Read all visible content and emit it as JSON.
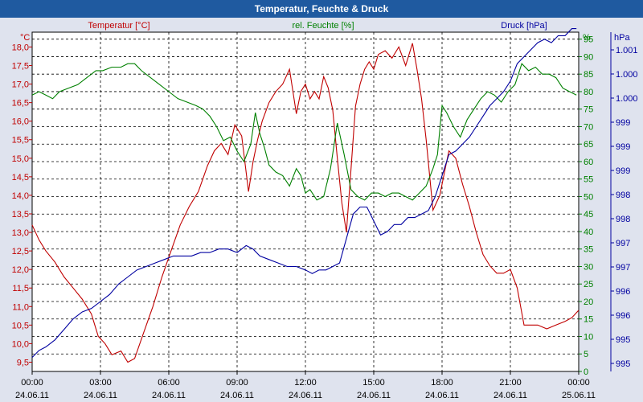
{
  "window": {
    "title": "Temperatur, Feuchte & Druck"
  },
  "chart_data": {
    "type": "line",
    "title": "Temperatur, Feuchte & Druck",
    "grid": true,
    "x_ticks": [
      {
        "time": "00:00",
        "date": "24.06.11"
      },
      {
        "time": "03:00",
        "date": "24.06.11"
      },
      {
        "time": "06:00",
        "date": "24.06.11"
      },
      {
        "time": "09:00",
        "date": "24.06.11"
      },
      {
        "time": "12:00",
        "date": "24.06.11"
      },
      {
        "time": "15:00",
        "date": "24.06.11"
      },
      {
        "time": "18:00",
        "date": "24.06.11"
      },
      {
        "time": "21:00",
        "date": "24.06.11"
      },
      {
        "time": "00:00",
        "date": "25.06.11"
      }
    ],
    "xlim_hours": [
      0,
      24
    ],
    "axes": {
      "temperature": {
        "unit": "°C",
        "label": "Temperatur [°C]",
        "color": "#c00000",
        "ylim": [
          9.25,
          18.4
        ],
        "ticks": [
          "18,0",
          "17,5",
          "17,0",
          "16,5",
          "16,0",
          "15,5",
          "15,0",
          "14,5",
          "14,0",
          "13,5",
          "13,0",
          "12,5",
          "12,0",
          "11,5",
          "11,0",
          "10,5",
          "10,0",
          "9,5"
        ]
      },
      "humidity": {
        "unit": "%",
        "label": "rel. Feuchte [%]",
        "color": "#008000",
        "ylim": [
          0,
          97
        ],
        "ticks": [
          "95",
          "90",
          "85",
          "80",
          "75",
          "70",
          "65",
          "60",
          "55",
          "50",
          "45",
          "40",
          "35",
          "30",
          "25",
          "20",
          "15",
          "10",
          "5",
          "0"
        ]
      },
      "pressure": {
        "unit": "hPa",
        "label": "Druck [hPa]",
        "color": "#0000a0",
        "ticks": [
          "1.001",
          "1.000",
          "1.000",
          "999",
          "999",
          "999",
          "998",
          "998",
          "997",
          "997",
          "996",
          "996",
          "995",
          "995"
        ]
      }
    },
    "series": [
      {
        "name": "Temperatur [°C]",
        "axis": "temperature",
        "color": "#c00000",
        "x": [
          0,
          0.3,
          0.6,
          1,
          1.4,
          1.8,
          2.2,
          2.6,
          2.9,
          3.2,
          3.5,
          3.9,
          4.2,
          4.5,
          4.9,
          5.3,
          5.7,
          6.1,
          6.5,
          6.9,
          7.3,
          7.7,
          8.0,
          8.3,
          8.6,
          8.9,
          9.2,
          9.5,
          9.7,
          9.9,
          10.1,
          10.4,
          10.7,
          11.0,
          11.3,
          11.6,
          11.8,
          12.0,
          12.2,
          12.4,
          12.6,
          12.8,
          13.0,
          13.2,
          13.4,
          13.6,
          13.8,
          14.0,
          14.2,
          14.4,
          14.6,
          14.8,
          15.0,
          15.2,
          15.5,
          15.8,
          16.1,
          16.4,
          16.7,
          16.9,
          17.1,
          17.3,
          17.6,
          17.9,
          18.1,
          18.3,
          18.6,
          18.9,
          19.2,
          19.5,
          19.8,
          20.1,
          20.4,
          20.7,
          21.0,
          21.3,
          21.6,
          21.9,
          22.2,
          22.6,
          23.0,
          23.4,
          23.7,
          24.0
        ],
        "values": [
          13.2,
          12.8,
          12.5,
          12.2,
          11.8,
          11.5,
          11.2,
          10.8,
          10.2,
          10.0,
          9.7,
          9.8,
          9.5,
          9.6,
          10.3,
          11.0,
          11.8,
          12.5,
          13.2,
          13.7,
          14.1,
          14.8,
          15.2,
          15.4,
          15.1,
          15.9,
          15.6,
          14.1,
          14.9,
          15.5,
          16.0,
          16.5,
          16.8,
          17.0,
          17.4,
          16.2,
          16.8,
          17.0,
          16.6,
          16.8,
          16.6,
          17.2,
          16.9,
          16.3,
          15.0,
          13.8,
          13.0,
          14.7,
          16.4,
          17.0,
          17.4,
          17.6,
          17.4,
          17.8,
          17.9,
          17.7,
          18.0,
          17.5,
          18.1,
          17.4,
          16.6,
          15.5,
          13.6,
          14.0,
          14.6,
          15.2,
          15.0,
          14.3,
          13.7,
          13.0,
          12.4,
          12.1,
          11.9,
          11.9,
          12.0,
          11.5,
          10.5,
          10.5,
          10.5,
          10.4,
          10.5,
          10.6,
          10.7,
          10.9
        ]
      },
      {
        "name": "rel. Feuchte [%]",
        "axis": "humidity",
        "color": "#008000",
        "x": [
          0,
          0.3,
          0.6,
          0.9,
          1.2,
          1.6,
          2.0,
          2.4,
          2.8,
          3.1,
          3.5,
          3.9,
          4.2,
          4.5,
          4.8,
          5.2,
          5.6,
          6.0,
          6.4,
          6.8,
          7.2,
          7.5,
          7.8,
          8.1,
          8.4,
          8.7,
          9.0,
          9.3,
          9.6,
          9.8,
          10.0,
          10.2,
          10.4,
          10.7,
          11.0,
          11.3,
          11.6,
          11.8,
          12.0,
          12.2,
          12.5,
          12.8,
          13.1,
          13.4,
          13.7,
          14.0,
          14.3,
          14.6,
          14.9,
          15.2,
          15.5,
          15.8,
          16.1,
          16.4,
          16.7,
          17.0,
          17.3,
          17.6,
          17.8,
          18.0,
          18.2,
          18.5,
          18.8,
          19.1,
          19.4,
          19.7,
          20.0,
          20.3,
          20.6,
          20.9,
          21.2,
          21.5,
          21.8,
          22.1,
          22.4,
          22.7,
          23.0,
          23.3,
          23.6,
          23.9
        ],
        "values": [
          79,
          80,
          79,
          78,
          80,
          81,
          82,
          84,
          86,
          86,
          87,
          87,
          88,
          88,
          86,
          84,
          82,
          80,
          78,
          77,
          76,
          75,
          73,
          70,
          66,
          67,
          63,
          60,
          65,
          74,
          68,
          64,
          59,
          57,
          56,
          53,
          58,
          56,
          51,
          52,
          49,
          50,
          58,
          71,
          62,
          52,
          50,
          49,
          51,
          51,
          50,
          51,
          51,
          50,
          49,
          51,
          53,
          58,
          62,
          76,
          74,
          70,
          67,
          72,
          75,
          78,
          80,
          79,
          77,
          80,
          82,
          88,
          86,
          87,
          85,
          85,
          84,
          81,
          80,
          79
        ]
      },
      {
        "name": "Druck [hPa]",
        "axis": "pressure",
        "color": "#0000a0",
        "x": [
          0,
          0.3,
          0.6,
          1.0,
          1.4,
          1.8,
          2.2,
          2.6,
          3.0,
          3.4,
          3.8,
          4.2,
          4.6,
          5.0,
          5.4,
          5.8,
          6.2,
          6.6,
          7.0,
          7.4,
          7.8,
          8.2,
          8.6,
          9.0,
          9.4,
          9.7,
          10.0,
          10.4,
          10.8,
          11.2,
          11.6,
          12.0,
          12.3,
          12.6,
          12.9,
          13.2,
          13.5,
          13.8,
          14.1,
          14.4,
          14.7,
          15.0,
          15.3,
          15.6,
          15.9,
          16.2,
          16.5,
          16.8,
          17.1,
          17.4,
          17.7,
          18.0,
          18.3,
          18.6,
          18.9,
          19.2,
          19.5,
          19.8,
          20.1,
          20.4,
          20.7,
          21.0,
          21.3,
          21.6,
          21.9,
          22.2,
          22.5,
          22.8,
          23.1,
          23.4,
          23.7,
          23.9
        ],
        "values": [
          4,
          6,
          7,
          9,
          12,
          15,
          17,
          18,
          20,
          22,
          25,
          27,
          29,
          30,
          31,
          32,
          33,
          33,
          33,
          34,
          34,
          35,
          35,
          34,
          36,
          35,
          33,
          32,
          31,
          30,
          30,
          29,
          28,
          29,
          29,
          30,
          31,
          38,
          45,
          47,
          47,
          43,
          39,
          40,
          42,
          42,
          44,
          44,
          45,
          46,
          50,
          56,
          62,
          63,
          65,
          67,
          70,
          73,
          76,
          78,
          80,
          83,
          88,
          90,
          92,
          94,
          95,
          94,
          96,
          96,
          98,
          98
        ]
      }
    ]
  }
}
